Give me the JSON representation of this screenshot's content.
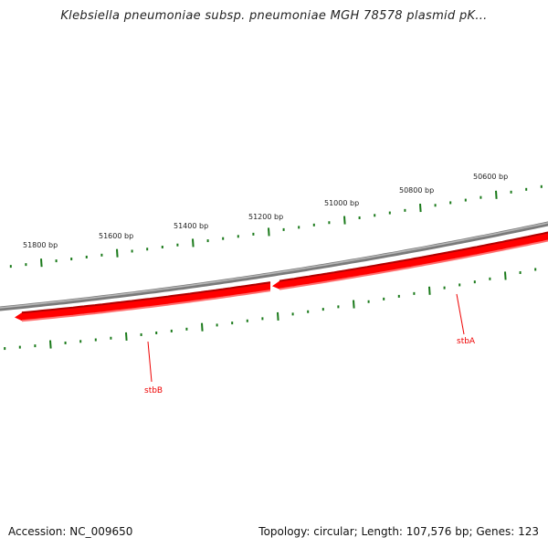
{
  "title": "Klebsiella pneumoniae subsp. pneumoniae MGH 78578 plasmid pK...",
  "footer": {
    "accession": "Accession: NC_009650",
    "topology": "Topology: circular; Length: 107,576 bp; Genes: 123"
  },
  "ticks": [
    "51800 bp",
    "51600 bp",
    "51400 bp",
    "51200 bp",
    "51000 bp",
    "50800 bp",
    "50600 bp"
  ],
  "genes": [
    {
      "name": "stbB",
      "strand": "reverse"
    },
    {
      "name": "stbA",
      "strand": "reverse"
    }
  ],
  "colors": {
    "gene": "#ff0000",
    "backbone": "#808080",
    "tick": "#1a7a1a"
  }
}
